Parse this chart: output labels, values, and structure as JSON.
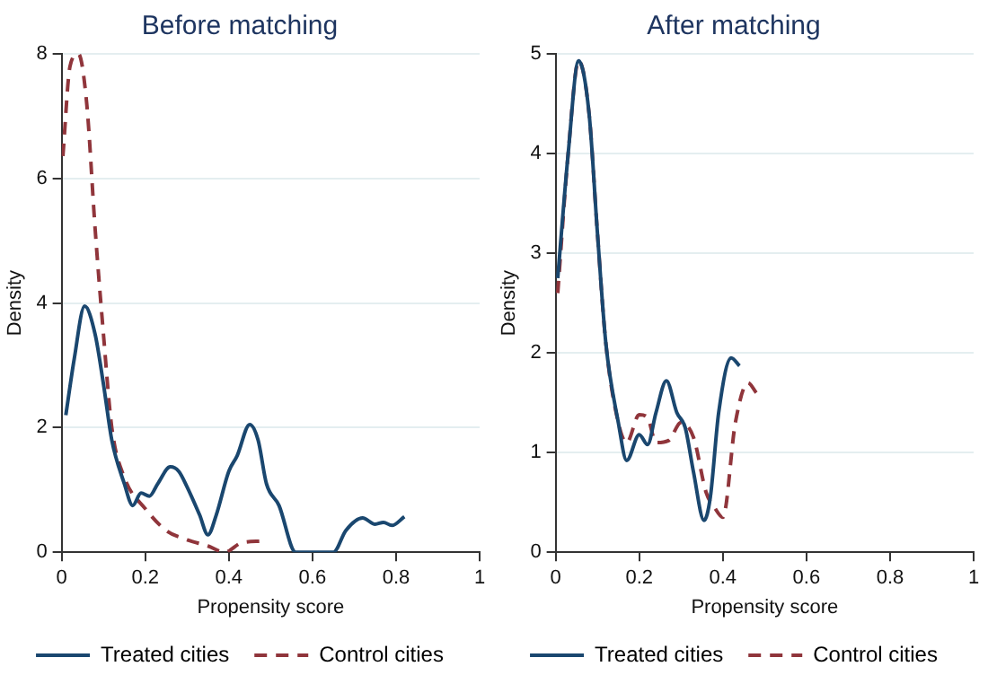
{
  "chart_data": [
    {
      "type": "line",
      "title": "Before matching",
      "xlabel": "Propensity score",
      "ylabel": "Density",
      "xlim": [
        0,
        1
      ],
      "xticks": [
        0,
        0.2,
        0.4,
        0.6,
        0.8,
        1
      ],
      "ylim": [
        0,
        8
      ],
      "yticks": [
        0,
        2,
        4,
        6,
        8
      ],
      "grid": "y",
      "legend": "bottom",
      "series": [
        {
          "name": "Treated cities",
          "color": "#1a476f",
          "line_style": "solid",
          "x": [
            0.01,
            0.03,
            0.055,
            0.08,
            0.1,
            0.12,
            0.15,
            0.17,
            0.19,
            0.21,
            0.23,
            0.26,
            0.28,
            0.3,
            0.33,
            0.35,
            0.37,
            0.4,
            0.42,
            0.45,
            0.47,
            0.49,
            0.52,
            0.56,
            0.65,
            0.68,
            0.72,
            0.75,
            0.77,
            0.79,
            0.82
          ],
          "values": [
            2.2,
            3.1,
            3.95,
            3.5,
            2.7,
            1.8,
            1.1,
            0.75,
            0.95,
            0.9,
            1.1,
            1.37,
            1.3,
            1.05,
            0.6,
            0.28,
            0.6,
            1.3,
            1.55,
            2.05,
            1.8,
            1.1,
            0.75,
            0,
            0,
            0.35,
            0.55,
            0.45,
            0.48,
            0.43,
            0.57
          ]
        },
        {
          "name": "Control cities",
          "color": "#90353b",
          "line_style": "dashed",
          "x": [
            0.003,
            0.02,
            0.04,
            0.06,
            0.08,
            0.1,
            0.12,
            0.15,
            0.2,
            0.25,
            0.3,
            0.35,
            0.39,
            0.43,
            0.48
          ],
          "values": [
            6.36,
            7.8,
            8,
            7.2,
            5.2,
            3.5,
            2,
            1.2,
            0.7,
            0.35,
            0.2,
            0.1,
            0,
            0.15,
            0.18
          ]
        }
      ]
    },
    {
      "type": "line",
      "title": "After matching",
      "xlabel": "Propensity score",
      "ylabel": "Density",
      "xlim": [
        0,
        1
      ],
      "xticks": [
        0,
        0.2,
        0.4,
        0.6,
        0.8,
        1
      ],
      "ylim": [
        0,
        5
      ],
      "yticks": [
        0,
        1,
        2,
        3,
        4,
        5
      ],
      "grid": "y",
      "legend": "bottom",
      "series": [
        {
          "name": "Treated cities",
          "color": "#1a476f",
          "line_style": "solid",
          "x": [
            0.005,
            0.03,
            0.055,
            0.08,
            0.1,
            0.12,
            0.15,
            0.17,
            0.2,
            0.22,
            0.24,
            0.265,
            0.29,
            0.31,
            0.33,
            0.355,
            0.37,
            0.39,
            0.42,
            0.44
          ],
          "values": [
            2.75,
            4,
            4.93,
            4.4,
            3.2,
            2.1,
            1.3,
            0.92,
            1.18,
            1.08,
            1.4,
            1.72,
            1.4,
            1.25,
            0.8,
            0.32,
            0.55,
            1.4,
            1.95,
            1.87
          ]
        },
        {
          "name": "Control cities",
          "color": "#90353b",
          "line_style": "dashed",
          "x": [
            0.005,
            0.03,
            0.055,
            0.08,
            0.1,
            0.12,
            0.15,
            0.17,
            0.2,
            0.22,
            0.24,
            0.27,
            0.3,
            0.33,
            0.36,
            0.38,
            0.4,
            0.43,
            0.46,
            0.48
          ],
          "values": [
            2.6,
            4,
            4.93,
            4.4,
            3.2,
            2.1,
            1.3,
            1.1,
            1.38,
            1.35,
            1.1,
            1.12,
            1.3,
            1.15,
            0.6,
            0.45,
            0.35,
            1.3,
            1.7,
            1.6
          ]
        }
      ]
    }
  ]
}
